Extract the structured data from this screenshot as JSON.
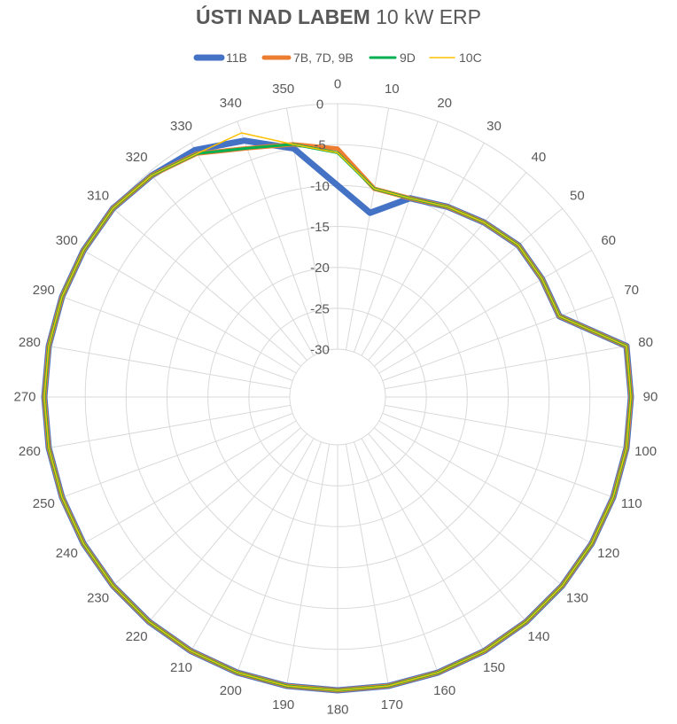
{
  "chart_data": {
    "type": "radar",
    "title_bold": "ÚSTI NAD LABEM",
    "title_rest": "10 kW ERP",
    "radial_axis": {
      "min": -30,
      "max": 0,
      "step": 5,
      "tick_labels": [
        "-30",
        "-25",
        "-20",
        "-15",
        "-10",
        "-5",
        "0"
      ]
    },
    "angles": [
      0,
      10,
      20,
      30,
      40,
      50,
      60,
      70,
      80,
      90,
      100,
      110,
      120,
      130,
      140,
      150,
      160,
      170,
      180,
      190,
      200,
      210,
      220,
      230,
      240,
      250,
      260,
      270,
      280,
      290,
      300,
      310,
      320,
      330,
      340,
      350
    ],
    "angle_labels": [
      "0",
      "10",
      "20",
      "30",
      "40",
      "50",
      "60",
      "70",
      "80",
      "90",
      "100",
      "110",
      "120",
      "130",
      "140",
      "150",
      "160",
      "170",
      "180",
      "190",
      "200",
      "210",
      "220",
      "230",
      "240",
      "250",
      "260",
      "270",
      "280",
      "290",
      "300",
      "310",
      "320",
      "330",
      "340",
      "350"
    ],
    "series": [
      {
        "name": "11B",
        "color": "#4472C4",
        "values": [
          -10,
          -13,
          -10,
          -9,
          -8,
          -7,
          -7,
          -7,
          0,
          0,
          0,
          0,
          0,
          0,
          0,
          0,
          0,
          0,
          0,
          0,
          0,
          0,
          0,
          0,
          0,
          0,
          0,
          0,
          0,
          0,
          0,
          0,
          -0.5,
          -1,
          -2.5,
          -5
        ]
      },
      {
        "name": "7B, 7D, 9B",
        "color": "#ED7D31",
        "values": [
          -5.5,
          -10,
          -10,
          -9,
          -8,
          -7,
          -7,
          -7,
          0,
          0,
          0,
          0,
          0,
          0,
          0,
          0,
          0,
          0,
          0,
          0,
          0,
          0,
          0,
          0,
          0,
          0,
          0,
          0,
          0,
          0,
          0,
          0,
          -0.5,
          -1.5,
          -3.5,
          -4.5
        ]
      },
      {
        "name": "9D",
        "color": "#00B050",
        "values": [
          -6,
          -10,
          -10,
          -9,
          -8,
          -7,
          -7,
          -7,
          0,
          0,
          0,
          0,
          0,
          0,
          0,
          0,
          0,
          0,
          0,
          0,
          0,
          0,
          0,
          0,
          0,
          0,
          0,
          0,
          0,
          0,
          0,
          0,
          -0.5,
          -1.5,
          -3.5,
          -4.5
        ]
      },
      {
        "name": "10C",
        "color": "#FFC000",
        "values": [
          -6,
          -10,
          -10,
          -9,
          -8,
          -7,
          -7,
          -7,
          0,
          0,
          0,
          0,
          0,
          0,
          0,
          0,
          0,
          0,
          0,
          0,
          0,
          0,
          0,
          0,
          0,
          0,
          0,
          0,
          0,
          0,
          0,
          0,
          -0.5,
          -1.5,
          -1.5,
          -4.5
        ]
      }
    ],
    "legend_position": "top"
  }
}
